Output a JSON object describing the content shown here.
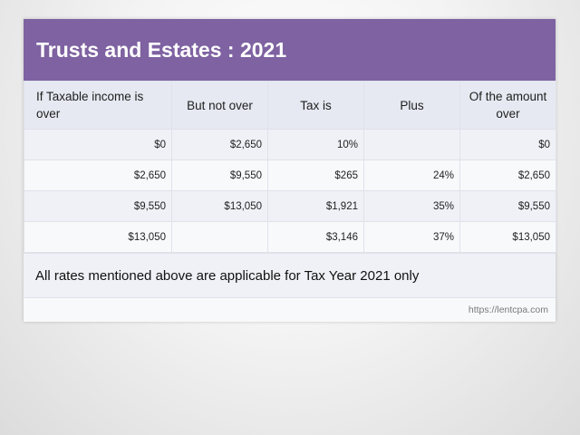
{
  "slide": {
    "title": "Trusts and Estates : 2021",
    "headers": [
      "If Taxable income is over",
      "But not over",
      "Tax is",
      "Plus",
      "Of the amount over"
    ],
    "rows": [
      [
        "$0",
        "$2,650",
        "10%",
        "",
        "$0"
      ],
      [
        "$2,650",
        "$9,550",
        "$265",
        "24%",
        "$2,650"
      ],
      [
        "$9,550",
        "$13,050",
        "$1,921",
        "35%",
        "$9,550"
      ],
      [
        "$13,050",
        "",
        "$3,146",
        "37%",
        "$13,050"
      ]
    ],
    "note": "All rates mentioned above are applicable for Tax Year 2021 only",
    "url": "https://lentcpa.com"
  },
  "colors": {
    "title_bg": "#7e62a1",
    "header_bg": "#e6e9f1",
    "row_odd": "#eff1f6",
    "row_even": "#f8f9fb"
  }
}
